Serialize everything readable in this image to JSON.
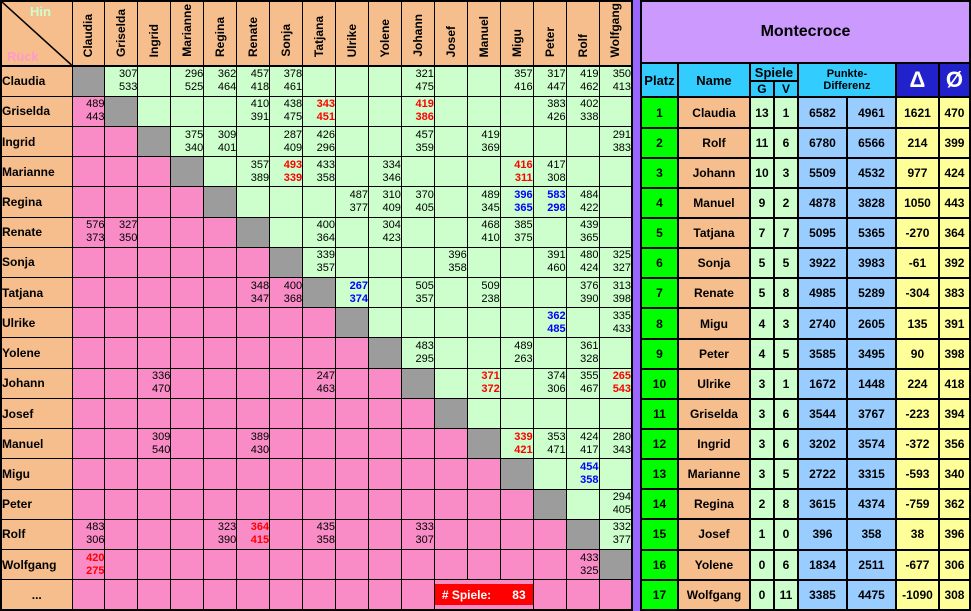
{
  "colors": {
    "peach": "#F6BE8C",
    "light_green": "#CCFFCC",
    "pink": "#F98CC6",
    "gray_diag": "#9C9C9C",
    "corner_green": "#339966",
    "hin_text": "#CCFFCC",
    "rueck_text": "#FF99CC",
    "red": "#FF0000",
    "blue": "#0000FF",
    "header_cyan": "#33CCFF",
    "dark_blue": "#2222CC",
    "panel_purple": "#CC99FF",
    "strip_purple": "#9966FF",
    "rank_green": "#00FF00",
    "points_blue": "#99CCFF",
    "delta_yellow": "#FFFF99",
    "badge_red": "#FF0000"
  },
  "left_table": {
    "corner": {
      "hin": "Hin",
      "rueck": "Rück"
    },
    "players": [
      "Claudia",
      "Griselda",
      "Ingrid",
      "Marianne",
      "Regina",
      "Renate",
      "Sonja",
      "Tatjana",
      "Ulrike",
      "Yolene",
      "Johann",
      "Josef",
      "Manuel",
      "Migu",
      "Peter",
      "Rolf",
      "Wolfgang"
    ],
    "rows": [
      {
        "name": "Claudia",
        "cells": [
          null,
          [
            "307",
            "533"
          ],
          null,
          [
            "296",
            "525"
          ],
          [
            "362",
            "464"
          ],
          [
            "457",
            "418"
          ],
          [
            "378",
            "461"
          ],
          null,
          null,
          null,
          [
            "321",
            "475"
          ],
          null,
          null,
          [
            "357",
            "416"
          ],
          [
            "317",
            "447"
          ],
          [
            "419",
            "462"
          ],
          [
            "350",
            "413"
          ]
        ]
      },
      {
        "name": "Griselda",
        "cells": [
          [
            "489",
            "443"
          ],
          null,
          null,
          null,
          null,
          [
            "410",
            "391"
          ],
          [
            "438",
            "475"
          ],
          [
            "343",
            "451",
            "red"
          ],
          null,
          null,
          [
            "419",
            "386",
            "red"
          ],
          null,
          null,
          null,
          [
            "383",
            "426"
          ],
          [
            "402",
            "338"
          ],
          null
        ]
      },
      {
        "name": "Ingrid",
        "cells": [
          null,
          null,
          null,
          [
            "375",
            "340"
          ],
          [
            "309",
            "401"
          ],
          null,
          [
            "287",
            "409"
          ],
          [
            "426",
            "296"
          ],
          null,
          null,
          [
            "457",
            "359"
          ],
          null,
          [
            "419",
            "369"
          ],
          null,
          null,
          null,
          [
            "291",
            "383"
          ]
        ]
      },
      {
        "name": "Marianne",
        "cells": [
          null,
          null,
          null,
          null,
          null,
          [
            "357",
            "389"
          ],
          [
            "493",
            "339",
            "red"
          ],
          [
            "433",
            "358"
          ],
          null,
          [
            "334",
            "346"
          ],
          null,
          null,
          null,
          [
            "416",
            "311",
            "red"
          ],
          [
            "417",
            "308"
          ],
          null,
          null
        ]
      },
      {
        "name": "Regina",
        "cells": [
          null,
          null,
          null,
          null,
          null,
          null,
          null,
          null,
          [
            "487",
            "377"
          ],
          [
            "310",
            "409"
          ],
          [
            "370",
            "405"
          ],
          null,
          [
            "489",
            "345"
          ],
          [
            "396",
            "365",
            "blue"
          ],
          [
            "583",
            "298",
            "blue"
          ],
          [
            "484",
            "422"
          ],
          null
        ]
      },
      {
        "name": "Renate",
        "cells": [
          [
            "576",
            "373"
          ],
          [
            "327",
            "350"
          ],
          null,
          null,
          null,
          null,
          null,
          [
            "400",
            "364"
          ],
          null,
          [
            "304",
            "423"
          ],
          null,
          null,
          [
            "468",
            "410"
          ],
          [
            "385",
            "375"
          ],
          null,
          [
            "439",
            "365"
          ],
          null
        ]
      },
      {
        "name": "Sonja",
        "cells": [
          null,
          null,
          null,
          null,
          null,
          null,
          null,
          [
            "339",
            "357"
          ],
          null,
          null,
          null,
          [
            "396",
            "358"
          ],
          null,
          null,
          [
            "391",
            "460"
          ],
          [
            "480",
            "424"
          ],
          [
            "325",
            "327"
          ]
        ]
      },
      {
        "name": "Tatjana",
        "cells": [
          null,
          null,
          null,
          null,
          null,
          [
            "348",
            "347"
          ],
          [
            "400",
            "368"
          ],
          null,
          [
            "267",
            "374",
            "blue"
          ],
          null,
          [
            "505",
            "357"
          ],
          null,
          [
            "509",
            "238"
          ],
          null,
          null,
          [
            "376",
            "390"
          ],
          [
            "313",
            "398"
          ]
        ]
      },
      {
        "name": "Ulrike",
        "cells": [
          null,
          null,
          null,
          null,
          null,
          null,
          null,
          null,
          null,
          null,
          null,
          null,
          null,
          null,
          [
            "362",
            "485",
            "blue"
          ],
          null,
          [
            "335",
            "433"
          ]
        ]
      },
      {
        "name": "Yolene",
        "cells": [
          null,
          null,
          null,
          null,
          null,
          null,
          null,
          null,
          null,
          null,
          [
            "483",
            "295"
          ],
          null,
          null,
          [
            "489",
            "263"
          ],
          null,
          [
            "361",
            "328"
          ],
          null
        ]
      },
      {
        "name": "Johann",
        "cells": [
          null,
          null,
          [
            "336",
            "470"
          ],
          null,
          null,
          null,
          null,
          [
            "247",
            "463"
          ],
          null,
          null,
          null,
          null,
          [
            "371",
            "372",
            "red"
          ],
          null,
          [
            "374",
            "306"
          ],
          [
            "355",
            "467"
          ],
          [
            "265",
            "543",
            "red"
          ]
        ]
      },
      {
        "name": "Josef",
        "cells": [
          null,
          null,
          null,
          null,
          null,
          null,
          null,
          null,
          null,
          null,
          null,
          null,
          null,
          null,
          null,
          null,
          null
        ]
      },
      {
        "name": "Manuel",
        "cells": [
          null,
          null,
          [
            "309",
            "540"
          ],
          null,
          null,
          [
            "389",
            "430"
          ],
          null,
          null,
          null,
          null,
          null,
          null,
          null,
          [
            "339",
            "421",
            "red"
          ],
          [
            "353",
            "471"
          ],
          [
            "424",
            "417"
          ],
          [
            "280",
            "343"
          ]
        ]
      },
      {
        "name": "Migu",
        "cells": [
          null,
          null,
          null,
          null,
          null,
          null,
          null,
          null,
          null,
          null,
          null,
          null,
          null,
          null,
          null,
          [
            "454",
            "358",
            "blue"
          ],
          null
        ]
      },
      {
        "name": "Peter",
        "cells": [
          null,
          null,
          null,
          null,
          null,
          null,
          null,
          null,
          null,
          null,
          null,
          null,
          null,
          null,
          null,
          null,
          [
            "294",
            "405"
          ]
        ]
      },
      {
        "name": "Rolf",
        "cells": [
          [
            "483",
            "306"
          ],
          null,
          null,
          null,
          [
            "323",
            "390"
          ],
          [
            "364",
            "415",
            "red"
          ],
          null,
          [
            "435",
            "358"
          ],
          null,
          null,
          [
            "333",
            "307"
          ],
          null,
          null,
          null,
          null,
          null,
          [
            "332",
            "377"
          ]
        ]
      },
      {
        "name": "Wolfgang",
        "cells": [
          [
            "420",
            "275",
            "red"
          ],
          null,
          null,
          null,
          null,
          null,
          null,
          null,
          null,
          null,
          null,
          null,
          null,
          null,
          null,
          [
            "433",
            "325"
          ],
          null
        ]
      }
    ],
    "footer": {
      "label": "...",
      "badge_label": "# Spiele:",
      "badge_value": "83"
    }
  },
  "standings": {
    "title": "Montecroce",
    "headers": {
      "platz": "Platz",
      "name": "Name",
      "spiele": "Spiele",
      "g": "G",
      "v": "V",
      "punkte1": "Punkte-",
      "punkte2": "Differenz",
      "delta": "Δ",
      "avg": "Ø"
    },
    "rows": [
      [
        "1",
        "Claudia",
        "13",
        "1",
        "6582",
        "4961",
        "1621",
        "470"
      ],
      [
        "2",
        "Rolf",
        "11",
        "6",
        "6780",
        "6566",
        "214",
        "399"
      ],
      [
        "3",
        "Johann",
        "10",
        "3",
        "5509",
        "4532",
        "977",
        "424"
      ],
      [
        "4",
        "Manuel",
        "9",
        "2",
        "4878",
        "3828",
        "1050",
        "443"
      ],
      [
        "5",
        "Tatjana",
        "7",
        "7",
        "5095",
        "5365",
        "-270",
        "364"
      ],
      [
        "6",
        "Sonja",
        "5",
        "5",
        "3922",
        "3983",
        "-61",
        "392"
      ],
      [
        "7",
        "Renate",
        "5",
        "8",
        "4985",
        "5289",
        "-304",
        "383"
      ],
      [
        "8",
        "Migu",
        "4",
        "3",
        "2740",
        "2605",
        "135",
        "391"
      ],
      [
        "9",
        "Peter",
        "4",
        "5",
        "3585",
        "3495",
        "90",
        "398"
      ],
      [
        "10",
        "Ulrike",
        "3",
        "1",
        "1672",
        "1448",
        "224",
        "418"
      ],
      [
        "11",
        "Griselda",
        "3",
        "6",
        "3544",
        "3767",
        "-223",
        "394"
      ],
      [
        "12",
        "Ingrid",
        "3",
        "6",
        "3202",
        "3574",
        "-372",
        "356"
      ],
      [
        "13",
        "Marianne",
        "3",
        "5",
        "2722",
        "3315",
        "-593",
        "340"
      ],
      [
        "14",
        "Regina",
        "2",
        "8",
        "3615",
        "4374",
        "-759",
        "362"
      ],
      [
        "15",
        "Josef",
        "1",
        "0",
        "396",
        "358",
        "38",
        "396"
      ],
      [
        "16",
        "Yolene",
        "0",
        "6",
        "1834",
        "2511",
        "-677",
        "306"
      ],
      [
        "17",
        "Wolfgang",
        "0",
        "11",
        "3385",
        "4475",
        "-1090",
        "308"
      ]
    ]
  }
}
